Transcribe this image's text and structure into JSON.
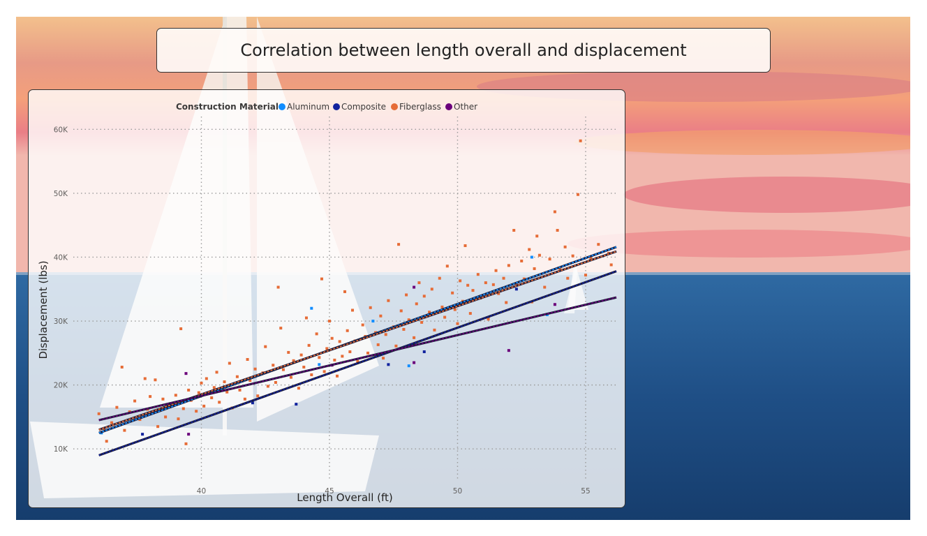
{
  "page": {
    "title": "Correlation between length overall and displacement"
  },
  "colors": {
    "Aluminum": "#118dff",
    "Composite": "#12239e",
    "Fiberglass": "#e66c37",
    "Other": "#6b007b",
    "sky_top": "#f6b98a",
    "sky_bottom": "#ee8f8f",
    "sea": "#1f4f86"
  },
  "chart_data": {
    "type": "scatter",
    "legend": {
      "title": "Construction Material",
      "position": "top-left",
      "items": [
        "Aluminum",
        "Composite",
        "Fiberglass",
        "Other"
      ]
    },
    "xlabel": "Length Overall (ft)",
    "ylabel": "Displacement (lbs)",
    "xlim": [
      35,
      56.2
    ],
    "ylim": [
      5000,
      62000
    ],
    "xticks": [
      {
        "value": 40,
        "label": "40"
      },
      {
        "value": 45,
        "label": "45"
      },
      {
        "value": 50,
        "label": "50"
      },
      {
        "value": 55,
        "label": "55"
      }
    ],
    "yticks": [
      {
        "value": 10000,
        "label": "10K"
      },
      {
        "value": 20000,
        "label": "20K"
      },
      {
        "value": 30000,
        "label": "30K"
      },
      {
        "value": 40000,
        "label": "40K"
      },
      {
        "value": 50000,
        "label": "50K"
      },
      {
        "value": 60000,
        "label": "60K"
      }
    ],
    "grid": true,
    "trendlines": [
      {
        "series": "Aluminum",
        "x": [
          36,
          56.2
        ],
        "y": [
          12500,
          41600
        ]
      },
      {
        "series": "Fiberglass",
        "x": [
          36,
          56.2
        ],
        "y": [
          13000,
          40900
        ]
      },
      {
        "series": "Composite",
        "x": [
          36,
          56.2
        ],
        "y": [
          9000,
          37800
        ]
      },
      {
        "series": "Other",
        "x": [
          36,
          56.2
        ],
        "y": [
          14500,
          33700
        ]
      }
    ],
    "series": [
      {
        "name": "Aluminum",
        "points": [
          [
            36.1,
            12500
          ],
          [
            44.3,
            32000
          ],
          [
            44.6,
            23200
          ],
          [
            46.7,
            30000
          ],
          [
            48.1,
            23000
          ],
          [
            52.9,
            40000
          ],
          [
            53.5,
            31000
          ]
        ]
      },
      {
        "name": "Composite",
        "points": [
          [
            37.7,
            12300
          ],
          [
            42.0,
            17200
          ],
          [
            43.7,
            17000
          ],
          [
            47.3,
            23200
          ],
          [
            48.7,
            25200
          ],
          [
            51.2,
            30500
          ],
          [
            52.3,
            35000
          ]
        ]
      },
      {
        "name": "Other",
        "points": [
          [
            39.4,
            21800
          ],
          [
            39.5,
            12300
          ],
          [
            45.1,
            23100
          ],
          [
            48.3,
            23500
          ],
          [
            48.3,
            35300
          ],
          [
            52.0,
            25400
          ],
          [
            53.8,
            32600
          ]
        ]
      },
      {
        "name": "Fiberglass",
        "points": [
          [
            36.0,
            15500
          ],
          [
            36.2,
            13200
          ],
          [
            36.3,
            11200
          ],
          [
            36.5,
            14100
          ],
          [
            36.7,
            16500
          ],
          [
            36.9,
            22800
          ],
          [
            37.0,
            12900
          ],
          [
            37.2,
            15800
          ],
          [
            37.4,
            17500
          ],
          [
            37.6,
            14600
          ],
          [
            37.8,
            21000
          ],
          [
            37.9,
            16200
          ],
          [
            38.0,
            18200
          ],
          [
            38.2,
            20800
          ],
          [
            38.3,
            13500
          ],
          [
            38.5,
            17800
          ],
          [
            38.6,
            15000
          ],
          [
            38.8,
            16900
          ],
          [
            39.0,
            18400
          ],
          [
            39.1,
            14700
          ],
          [
            39.2,
            28800
          ],
          [
            39.3,
            16300
          ],
          [
            39.4,
            10800
          ],
          [
            39.5,
            19200
          ],
          [
            39.6,
            17600
          ],
          [
            39.8,
            15900
          ],
          [
            39.9,
            18800
          ],
          [
            40.0,
            20300
          ],
          [
            40.1,
            16700
          ],
          [
            40.2,
            21000
          ],
          [
            40.4,
            18000
          ],
          [
            40.5,
            19600
          ],
          [
            40.6,
            22000
          ],
          [
            40.7,
            17300
          ],
          [
            40.9,
            20500
          ],
          [
            41.0,
            18900
          ],
          [
            41.1,
            23400
          ],
          [
            41.2,
            16400
          ],
          [
            41.4,
            21300
          ],
          [
            41.5,
            19200
          ],
          [
            41.7,
            17800
          ],
          [
            41.8,
            24000
          ],
          [
            41.9,
            20700
          ],
          [
            42.1,
            22500
          ],
          [
            42.2,
            18300
          ],
          [
            42.4,
            21900
          ],
          [
            42.5,
            26000
          ],
          [
            42.6,
            19800
          ],
          [
            42.8,
            23100
          ],
          [
            42.9,
            20400
          ],
          [
            43.0,
            35300
          ],
          [
            43.1,
            28900
          ],
          [
            43.2,
            22400
          ],
          [
            43.4,
            25100
          ],
          [
            43.5,
            21200
          ],
          [
            43.6,
            23800
          ],
          [
            43.8,
            19500
          ],
          [
            43.9,
            24700
          ],
          [
            44.0,
            22800
          ],
          [
            44.1,
            30500
          ],
          [
            44.2,
            26200
          ],
          [
            44.3,
            21600
          ],
          [
            44.5,
            28000
          ],
          [
            44.6,
            24300
          ],
          [
            44.7,
            36600
          ],
          [
            44.8,
            22100
          ],
          [
            44.9,
            25700
          ],
          [
            45.0,
            30000
          ],
          [
            45.1,
            27300
          ],
          [
            45.2,
            23900
          ],
          [
            45.3,
            21400
          ],
          [
            45.4,
            26800
          ],
          [
            45.5,
            24500
          ],
          [
            45.6,
            34600
          ],
          [
            45.7,
            28500
          ],
          [
            45.8,
            25200
          ],
          [
            45.9,
            31700
          ],
          [
            46.0,
            26900
          ],
          [
            46.1,
            23700
          ],
          [
            46.3,
            29400
          ],
          [
            46.4,
            27600
          ],
          [
            46.5,
            25000
          ],
          [
            46.6,
            32100
          ],
          [
            46.8,
            28200
          ],
          [
            46.9,
            26300
          ],
          [
            47.0,
            30800
          ],
          [
            47.1,
            24200
          ],
          [
            47.2,
            27900
          ],
          [
            47.3,
            33200
          ],
          [
            47.5,
            29100
          ],
          [
            47.6,
            26100
          ],
          [
            47.7,
            42000
          ],
          [
            47.8,
            31600
          ],
          [
            47.9,
            28700
          ],
          [
            48.0,
            34100
          ],
          [
            48.1,
            30200
          ],
          [
            48.3,
            27400
          ],
          [
            48.4,
            32700
          ],
          [
            48.5,
            36000
          ],
          [
            48.6,
            29800
          ],
          [
            48.7,
            33900
          ],
          [
            48.9,
            31400
          ],
          [
            49.0,
            35000
          ],
          [
            49.1,
            28600
          ],
          [
            49.3,
            36700
          ],
          [
            49.4,
            32200
          ],
          [
            49.5,
            30600
          ],
          [
            49.6,
            38600
          ],
          [
            49.8,
            34400
          ],
          [
            49.9,
            31800
          ],
          [
            50.0,
            29600
          ],
          [
            50.1,
            36300
          ],
          [
            50.2,
            33100
          ],
          [
            50.3,
            41800
          ],
          [
            50.4,
            35600
          ],
          [
            50.5,
            31200
          ],
          [
            50.6,
            34800
          ],
          [
            50.8,
            37300
          ],
          [
            50.9,
            33600
          ],
          [
            51.1,
            36000
          ],
          [
            51.2,
            30300
          ],
          [
            51.4,
            35700
          ],
          [
            51.5,
            37900
          ],
          [
            51.6,
            34300
          ],
          [
            51.8,
            36700
          ],
          [
            51.9,
            32900
          ],
          [
            52.0,
            38700
          ],
          [
            52.2,
            44200
          ],
          [
            52.3,
            35900
          ],
          [
            52.5,
            39400
          ],
          [
            52.6,
            36600
          ],
          [
            52.8,
            41200
          ],
          [
            52.9,
            33000
          ],
          [
            53.0,
            38200
          ],
          [
            53.1,
            43300
          ],
          [
            53.2,
            40300
          ],
          [
            53.4,
            35300
          ],
          [
            53.6,
            39700
          ],
          [
            53.8,
            47100
          ],
          [
            53.9,
            44200
          ],
          [
            54.0,
            38100
          ],
          [
            54.2,
            41600
          ],
          [
            54.3,
            36700
          ],
          [
            54.5,
            40200
          ],
          [
            54.7,
            49800
          ],
          [
            54.8,
            58200
          ],
          [
            55.0,
            37200
          ],
          [
            55.2,
            39800
          ],
          [
            55.5,
            42000
          ],
          [
            55.9,
            40600
          ],
          [
            56.0,
            38800
          ]
        ]
      }
    ]
  }
}
